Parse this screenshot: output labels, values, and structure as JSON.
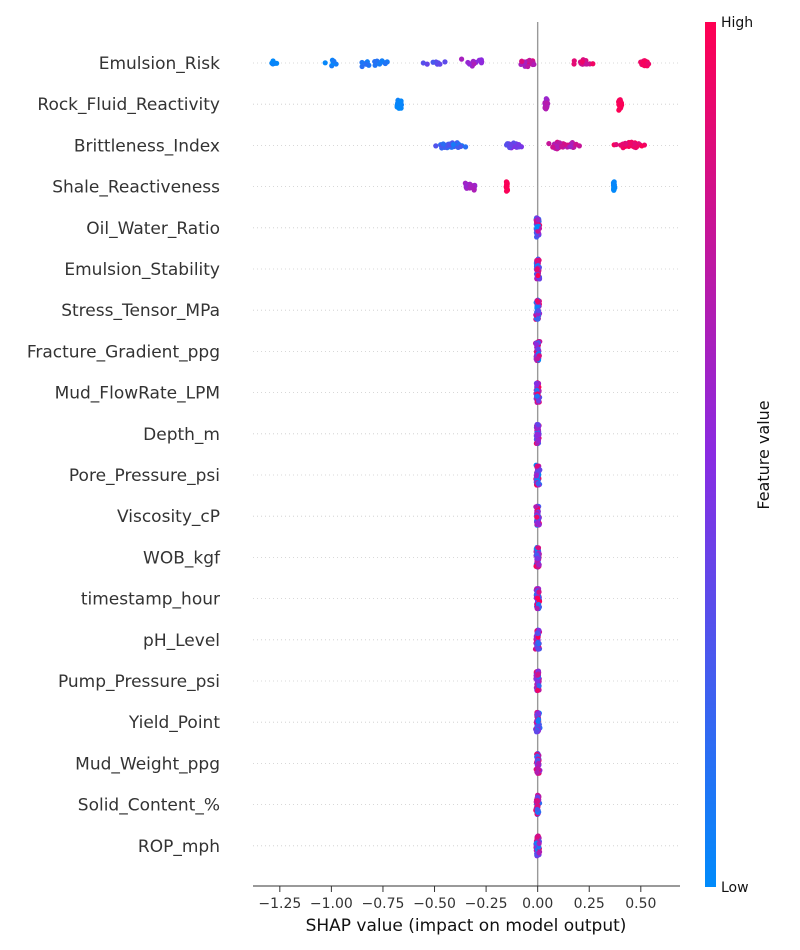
{
  "chart_data": {
    "type": "scatter",
    "subtype": "shap-beeswarm",
    "xlabel": "SHAP value (impact on model output)",
    "xlim": [
      -1.38,
      0.69
    ],
    "xticks": [
      -1.25,
      -1.0,
      -0.75,
      -0.5,
      -0.25,
      0.0,
      0.25,
      0.5
    ],
    "xtick_labels": [
      "−1.25",
      "−1.00",
      "−0.75",
      "−0.50",
      "−0.25",
      "0.00",
      "0.25",
      "0.50"
    ],
    "colorbar": {
      "title": "Feature value",
      "high_label": "High",
      "low_label": "Low",
      "low_color": "#008bfb",
      "mid_color": "#8a2be2",
      "high_color": "#ff0052"
    },
    "features": [
      {
        "name": "Emulsion_Risk",
        "groups": [
          {
            "x": -1.28,
            "spread": 0.04,
            "n": 6,
            "fv": [
              0.0,
              0.05
            ]
          },
          {
            "x": -1.0,
            "spread": 0.06,
            "n": 6,
            "fv": [
              0.0,
              0.1
            ]
          },
          {
            "x": -0.8,
            "spread": 0.12,
            "n": 14,
            "fv": [
              0.05,
              0.15
            ]
          },
          {
            "x": -0.5,
            "spread": 0.06,
            "n": 10,
            "fv": [
              0.25,
              0.4
            ]
          },
          {
            "x": -0.3,
            "spread": 0.1,
            "n": 14,
            "fv": [
              0.45,
              0.65
            ]
          },
          {
            "x": -0.05,
            "spread": 0.07,
            "n": 16,
            "fv": [
              0.6,
              0.85
            ]
          },
          {
            "x": 0.22,
            "spread": 0.08,
            "n": 18,
            "fv": [
              0.75,
              0.95
            ]
          },
          {
            "x": 0.52,
            "spread": 0.03,
            "n": 30,
            "fv": [
              0.9,
              1.0
            ]
          }
        ]
      },
      {
        "name": "Rock_Fluid_Reactivity",
        "groups": [
          {
            "x": -0.67,
            "spread": 0.015,
            "n": 40,
            "fv": [
              0.0,
              0.05
            ]
          },
          {
            "x": 0.04,
            "spread": 0.012,
            "n": 40,
            "fv": [
              0.55,
              0.7
            ]
          },
          {
            "x": 0.4,
            "spread": 0.012,
            "n": 40,
            "fv": [
              0.95,
              1.0
            ]
          }
        ]
      },
      {
        "name": "Brittleness_Index",
        "groups": [
          {
            "x": -0.42,
            "spread": 0.1,
            "n": 35,
            "fv": [
              0.08,
              0.3
            ]
          },
          {
            "x": -0.1,
            "spread": 0.08,
            "n": 22,
            "fv": [
              0.3,
              0.55
            ]
          },
          {
            "x": 0.12,
            "spread": 0.12,
            "n": 30,
            "fv": [
              0.6,
              0.85
            ]
          },
          {
            "x": 0.45,
            "spread": 0.13,
            "n": 35,
            "fv": [
              0.85,
              1.0
            ]
          }
        ]
      },
      {
        "name": "Shale_Reactiveness",
        "groups": [
          {
            "x": -0.33,
            "spread": 0.04,
            "n": 30,
            "fv": [
              0.55,
              0.65
            ]
          },
          {
            "x": -0.15,
            "spread": 0.005,
            "n": 25,
            "fv": [
              0.97,
              1.0
            ]
          },
          {
            "x": 0.37,
            "spread": 0.005,
            "n": 25,
            "fv": [
              0.0,
              0.03
            ]
          }
        ]
      },
      {
        "name": "Oil_Water_Ratio",
        "groups": [
          {
            "x": 0.0,
            "spread": 0.012,
            "n": 60,
            "fv": [
              0.0,
              1.0
            ]
          }
        ]
      },
      {
        "name": "Emulsion_Stability",
        "groups": [
          {
            "x": 0.0,
            "spread": 0.012,
            "n": 60,
            "fv": [
              0.0,
              1.0
            ]
          }
        ]
      },
      {
        "name": "Stress_Tensor_MPa",
        "groups": [
          {
            "x": 0.0,
            "spread": 0.012,
            "n": 60,
            "fv": [
              0.0,
              1.0
            ]
          }
        ]
      },
      {
        "name": "Fracture_Gradient_ppg",
        "groups": [
          {
            "x": 0.0,
            "spread": 0.012,
            "n": 60,
            "fv": [
              0.0,
              1.0
            ]
          }
        ]
      },
      {
        "name": "Mud_FlowRate_LPM",
        "groups": [
          {
            "x": 0.0,
            "spread": 0.012,
            "n": 60,
            "fv": [
              0.0,
              1.0
            ]
          }
        ]
      },
      {
        "name": "Depth_m",
        "groups": [
          {
            "x": 0.0,
            "spread": 0.012,
            "n": 60,
            "fv": [
              0.0,
              1.0
            ]
          }
        ]
      },
      {
        "name": "Pore_Pressure_psi",
        "groups": [
          {
            "x": 0.0,
            "spread": 0.012,
            "n": 60,
            "fv": [
              0.0,
              1.0
            ]
          }
        ]
      },
      {
        "name": "Viscosity_cP",
        "groups": [
          {
            "x": 0.0,
            "spread": 0.012,
            "n": 60,
            "fv": [
              0.0,
              1.0
            ]
          }
        ]
      },
      {
        "name": "WOB_kgf",
        "groups": [
          {
            "x": 0.0,
            "spread": 0.012,
            "n": 60,
            "fv": [
              0.0,
              1.0
            ]
          }
        ]
      },
      {
        "name": "timestamp_hour",
        "groups": [
          {
            "x": 0.0,
            "spread": 0.012,
            "n": 60,
            "fv": [
              0.0,
              1.0
            ]
          }
        ]
      },
      {
        "name": "pH_Level",
        "groups": [
          {
            "x": 0.0,
            "spread": 0.012,
            "n": 60,
            "fv": [
              0.0,
              1.0
            ]
          }
        ]
      },
      {
        "name": "Pump_Pressure_psi",
        "groups": [
          {
            "x": 0.0,
            "spread": 0.012,
            "n": 60,
            "fv": [
              0.0,
              1.0
            ]
          }
        ]
      },
      {
        "name": "Yield_Point",
        "groups": [
          {
            "x": 0.0,
            "spread": 0.012,
            "n": 60,
            "fv": [
              0.0,
              1.0
            ]
          }
        ]
      },
      {
        "name": "Mud_Weight_ppg",
        "groups": [
          {
            "x": 0.0,
            "spread": 0.012,
            "n": 60,
            "fv": [
              0.0,
              1.0
            ]
          }
        ]
      },
      {
        "name": "Solid_Content_%",
        "groups": [
          {
            "x": 0.0,
            "spread": 0.012,
            "n": 60,
            "fv": [
              0.0,
              1.0
            ]
          }
        ]
      },
      {
        "name": "ROP_mph",
        "groups": [
          {
            "x": 0.0,
            "spread": 0.012,
            "n": 60,
            "fv": [
              0.0,
              1.0
            ]
          }
        ]
      }
    ]
  }
}
